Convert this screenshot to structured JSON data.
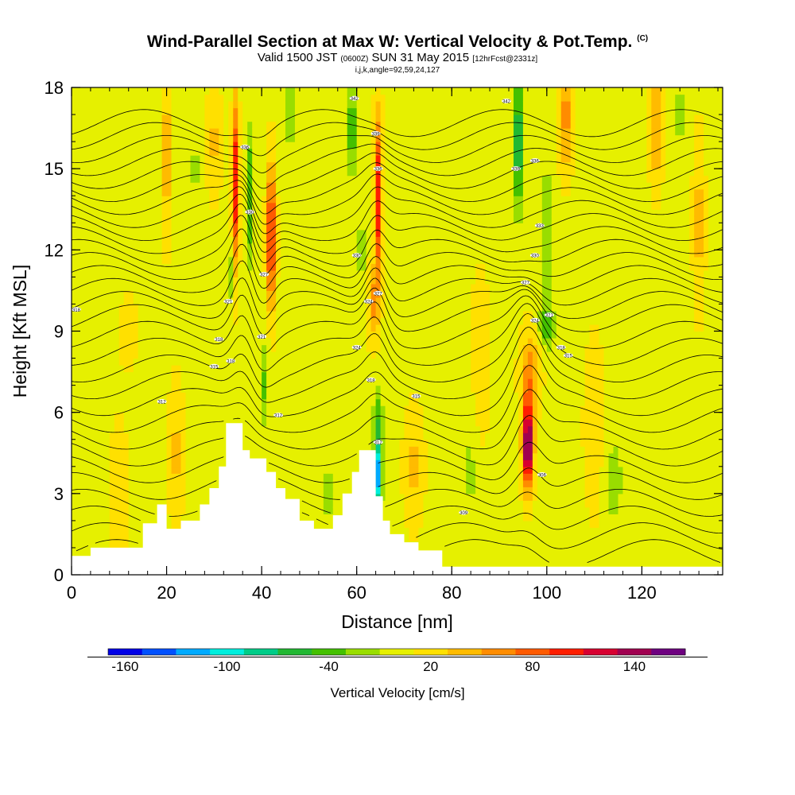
{
  "title": {
    "main": "Wind-Parallel Section at Max W: Vertical Velocity & Pot.Temp.",
    "copyright": "(C)",
    "valid_a": "Valid 1500 JST",
    "valid_b": "(0600Z)",
    "valid_c": "SUN 31 May 2015",
    "valid_d": "[12hrFcst@2331z]",
    "index": "i,j,k,angle=92,59,24,127"
  },
  "colorbar": {
    "label": "Vertical Velocity [cm/s]",
    "tick_labels": [
      "-160",
      "-100",
      "-40",
      "20",
      "80",
      "140"
    ],
    "colors": [
      "#0000e6",
      "#0050ff",
      "#00aaff",
      "#00eedd",
      "#00cc88",
      "#22b833",
      "#44c000",
      "#99dd00",
      "#e6f000",
      "#ffe000",
      "#ffbb00",
      "#ff8c00",
      "#ff5a00",
      "#ff1e00",
      "#d70030",
      "#a00050",
      "#6e0080"
    ]
  },
  "chart_data": {
    "type": "heatmap",
    "title": "Wind-Parallel Section at Max W: Vertical Velocity & Pot.Temp.",
    "xlabel": "Distance [nm]",
    "ylabel": "Height [Kft MSL]",
    "xlim": [
      0,
      137
    ],
    "ylim": [
      0,
      18
    ],
    "x_ticks": [
      0,
      20,
      40,
      60,
      80,
      100,
      120
    ],
    "y_ticks": [
      0,
      3,
      6,
      9,
      12,
      15,
      18
    ],
    "colorbar_range": [
      -170,
      170
    ],
    "colorbar_step": 20,
    "background_value": 5,
    "updraft_cells": [
      {
        "x": 96,
        "y": 4.8,
        "sx": 1.1,
        "sy": 1.6,
        "w": 165
      },
      {
        "x": 96.5,
        "y": 7.5,
        "sx": 2,
        "sy": 1.5,
        "w": 55
      },
      {
        "x": 42,
        "y": 12.5,
        "sx": 0.9,
        "sy": 2.6,
        "w": 110
      },
      {
        "x": 34.5,
        "y": 14.5,
        "sx": 0.7,
        "sy": 3,
        "w": 105
      },
      {
        "x": 64.5,
        "y": 14,
        "sx": 0.8,
        "sy": 3,
        "w": 105
      },
      {
        "x": 63.5,
        "y": 10,
        "sx": 1.2,
        "sy": 1.3,
        "w": 50
      },
      {
        "x": 104,
        "y": 17,
        "sx": 1.5,
        "sy": 2,
        "w": 55
      },
      {
        "x": 123,
        "y": 16.5,
        "sx": 1.3,
        "sy": 2,
        "w": 50
      },
      {
        "x": 20,
        "y": 15.5,
        "sx": 1,
        "sy": 3,
        "w": 40
      },
      {
        "x": 72,
        "y": 4,
        "sx": 2,
        "sy": 2,
        "w": 30
      },
      {
        "x": 110,
        "y": 5.5,
        "sx": 2,
        "sy": 3,
        "w": 25
      },
      {
        "x": 22,
        "y": 4.5,
        "sx": 1.5,
        "sy": 2.5,
        "w": 30
      },
      {
        "x": 10,
        "y": 3,
        "sx": 2,
        "sy": 2.5,
        "w": 20
      },
      {
        "x": 30,
        "y": 16,
        "sx": 1.5,
        "sy": 2,
        "w": 30
      },
      {
        "x": 12,
        "y": 9,
        "sx": 2,
        "sy": 1.5,
        "w": 15
      },
      {
        "x": 132,
        "y": 13,
        "sx": 1.2,
        "sy": 3,
        "w": 35
      },
      {
        "x": 86,
        "y": 8,
        "sx": 2,
        "sy": 3,
        "w": 20
      }
    ],
    "downdraft_cells": [
      {
        "x": 64.5,
        "y": 3.8,
        "sx": 0.8,
        "sy": 1.3,
        "w": -130
      },
      {
        "x": 64.5,
        "y": 6,
        "sx": 1,
        "sy": 1,
        "w": -45
      },
      {
        "x": 37.5,
        "y": 14,
        "sx": 0.8,
        "sy": 2.5,
        "w": -55
      },
      {
        "x": 33.5,
        "y": 11,
        "sx": 0.6,
        "sy": 1,
        "w": -35
      },
      {
        "x": 40.5,
        "y": 7,
        "sx": 1,
        "sy": 1.5,
        "w": -40
      },
      {
        "x": 59,
        "y": 16.5,
        "sx": 0.8,
        "sy": 1.8,
        "w": -60
      },
      {
        "x": 61,
        "y": 12,
        "sx": 0.7,
        "sy": 1.5,
        "w": -35
      },
      {
        "x": 94,
        "y": 16,
        "sx": 1,
        "sy": 2.5,
        "w": -80
      },
      {
        "x": 100,
        "y": 12.5,
        "sx": 1,
        "sy": 2.5,
        "w": -40
      },
      {
        "x": 100,
        "y": 9.2,
        "sx": 1.8,
        "sy": 0.8,
        "w": -45
      },
      {
        "x": 114,
        "y": 3.5,
        "sx": 2,
        "sy": 1.5,
        "w": -30
      },
      {
        "x": 84,
        "y": 4,
        "sx": 1.5,
        "sy": 2.5,
        "w": -20
      },
      {
        "x": 54,
        "y": 3,
        "sx": 2,
        "sy": 1.2,
        "w": -25
      },
      {
        "x": 26,
        "y": 15,
        "sx": 1,
        "sy": 3,
        "w": -20
      },
      {
        "x": 46,
        "y": 17,
        "sx": 1.5,
        "sy": 1.5,
        "w": -25
      },
      {
        "x": 128,
        "y": 17,
        "sx": 1.5,
        "sy": 1.5,
        "w": -20
      }
    ],
    "terrain": [
      [
        0,
        0.7
      ],
      [
        4,
        0.7
      ],
      [
        4,
        1.0
      ],
      [
        15,
        1.0
      ],
      [
        15,
        1.9
      ],
      [
        18,
        1.9
      ],
      [
        18,
        2.6
      ],
      [
        20,
        2.6
      ],
      [
        20,
        1.7
      ],
      [
        23,
        1.7
      ],
      [
        23,
        2.0
      ],
      [
        27,
        2.0
      ],
      [
        27,
        2.6
      ],
      [
        29,
        2.6
      ],
      [
        29,
        3.2
      ],
      [
        31,
        3.2
      ],
      [
        31,
        4.0
      ],
      [
        32.5,
        4.0
      ],
      [
        32.5,
        5.6
      ],
      [
        36,
        5.6
      ],
      [
        36,
        4.6
      ],
      [
        37.5,
        4.6
      ],
      [
        37.5,
        4.3
      ],
      [
        41,
        4.3
      ],
      [
        41,
        3.8
      ],
      [
        43,
        3.8
      ],
      [
        43,
        3.2
      ],
      [
        45,
        3.2
      ],
      [
        45,
        2.8
      ],
      [
        48,
        2.8
      ],
      [
        48,
        2.0
      ],
      [
        51,
        2.0
      ],
      [
        51,
        1.7
      ],
      [
        55,
        1.7
      ],
      [
        55,
        2.2
      ],
      [
        57,
        2.2
      ],
      [
        57,
        3.0
      ],
      [
        59,
        3.0
      ],
      [
        59,
        3.8
      ],
      [
        60.5,
        3.8
      ],
      [
        60.5,
        4.6
      ],
      [
        64,
        4.6
      ],
      [
        64,
        2.9
      ],
      [
        65.5,
        2.9
      ],
      [
        65.5,
        2.0
      ],
      [
        67,
        2.0
      ],
      [
        67,
        1.5
      ],
      [
        70,
        1.5
      ],
      [
        70,
        1.2
      ],
      [
        73,
        1.2
      ],
      [
        73,
        0.9
      ],
      [
        78,
        0.9
      ],
      [
        78,
        0.3
      ],
      [
        80,
        0.3
      ],
      [
        80,
        0
      ],
      [
        0,
        0
      ]
    ],
    "theta_contours": {
      "levels": 30,
      "base": 0.8,
      "spacing_low": 0.62,
      "spacing_high": 0.3,
      "compression_height": 9.5
    },
    "contour_labels": [
      {
        "x": 1,
        "y": 9.8,
        "text": "318"
      },
      {
        "x": 19,
        "y": 6.4,
        "text": "312"
      },
      {
        "x": 30,
        "y": 7.7,
        "text": "315"
      },
      {
        "x": 31,
        "y": 8.7,
        "text": "318"
      },
      {
        "x": 33,
        "y": 10.1,
        "text": "321"
      },
      {
        "x": 37.5,
        "y": 13.4,
        "text": "330"
      },
      {
        "x": 36.5,
        "y": 15.8,
        "text": "336"
      },
      {
        "x": 40.5,
        "y": 11.1,
        "text": "327"
      },
      {
        "x": 33.5,
        "y": 7.9,
        "text": "318"
      },
      {
        "x": 40,
        "y": 8.8,
        "text": "321"
      },
      {
        "x": 43.5,
        "y": 5.9,
        "text": "312"
      },
      {
        "x": 59.5,
        "y": 17.6,
        "text": "342"
      },
      {
        "x": 64,
        "y": 16.3,
        "text": "339"
      },
      {
        "x": 64.5,
        "y": 15,
        "text": "336"
      },
      {
        "x": 60,
        "y": 11.8,
        "text": "330"
      },
      {
        "x": 62.5,
        "y": 10.1,
        "text": "324"
      },
      {
        "x": 64.5,
        "y": 10.4,
        "text": "327"
      },
      {
        "x": 60,
        "y": 8.4,
        "text": "324"
      },
      {
        "x": 63,
        "y": 7.2,
        "text": "318"
      },
      {
        "x": 64.5,
        "y": 4.9,
        "text": "312"
      },
      {
        "x": 72.5,
        "y": 6.6,
        "text": "315"
      },
      {
        "x": 82.5,
        "y": 2.3,
        "text": "309"
      },
      {
        "x": 91.5,
        "y": 17.5,
        "text": "342"
      },
      {
        "x": 93.5,
        "y": 15,
        "text": "339"
      },
      {
        "x": 97.5,
        "y": 15.3,
        "text": "336"
      },
      {
        "x": 98.5,
        "y": 12.9,
        "text": "333"
      },
      {
        "x": 97.5,
        "y": 11.8,
        "text": "330"
      },
      {
        "x": 95.5,
        "y": 10.8,
        "text": "327"
      },
      {
        "x": 97.5,
        "y": 9.4,
        "text": "324"
      },
      {
        "x": 100.5,
        "y": 9.6,
        "text": "321"
      },
      {
        "x": 103,
        "y": 8.4,
        "text": "318"
      },
      {
        "x": 104.5,
        "y": 8.1,
        "text": "315"
      },
      {
        "x": 99,
        "y": 3.7,
        "text": "306"
      }
    ]
  }
}
